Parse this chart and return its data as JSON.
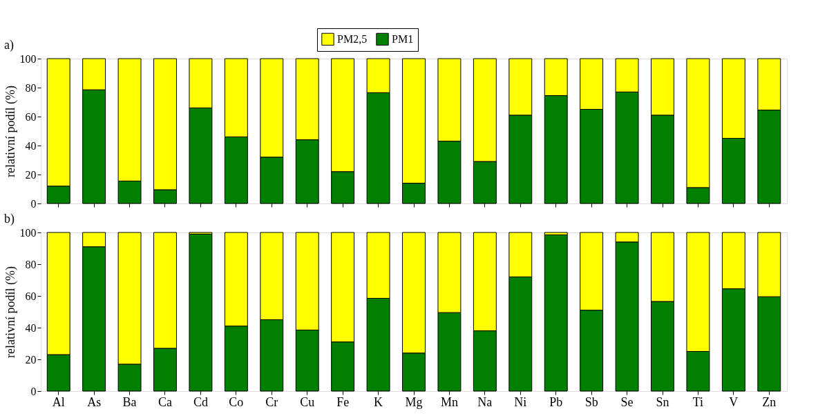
{
  "chart_data": [
    {
      "type": "bar",
      "stacked": true,
      "title": "a)",
      "ylabel": "relativní podíl (%)",
      "categories": [
        "Al",
        "As",
        "Ba",
        "Ca",
        "Cd",
        "Co",
        "Cr",
        "Cu",
        "Fe",
        "K",
        "Mg",
        "Mn",
        "Na",
        "Ni",
        "Pb",
        "Sb",
        "Se",
        "Sn",
        "Ti",
        "V",
        "Zn"
      ],
      "ylim": [
        0,
        100
      ],
      "yticks": [
        0,
        20,
        40,
        60,
        80,
        100
      ],
      "grid": false,
      "legend": "top",
      "tick_labels": "y",
      "series": [
        {
          "name": "PM1",
          "color": "#007f00",
          "values": [
            12,
            78.5,
            15.5,
            9.5,
            66,
            46,
            32,
            44,
            22,
            76.5,
            14,
            43,
            29,
            61,
            74.5,
            65,
            77,
            61,
            11,
            45,
            64.5
          ]
        },
        {
          "name": "PM2,5",
          "color": "#ffff00",
          "values": [
            88,
            21.5,
            84.5,
            90.5,
            34,
            54,
            68,
            56,
            78,
            23.5,
            86,
            57,
            71,
            39,
            25.5,
            35,
            23,
            39,
            89,
            55,
            35.5
          ]
        }
      ]
    },
    {
      "type": "bar",
      "stacked": true,
      "title": "b)",
      "ylabel": "relativní podíl (%)",
      "categories": [
        "Al",
        "As",
        "Ba",
        "Ca",
        "Cd",
        "Co",
        "Cr",
        "Cu",
        "Fe",
        "K",
        "Mg",
        "Mn",
        "Na",
        "Ni",
        "Pb",
        "Sb",
        "Se",
        "Sn",
        "Ti",
        "V",
        "Zn"
      ],
      "ylim": [
        0,
        100
      ],
      "yticks": [
        0,
        20,
        40,
        60,
        80,
        100
      ],
      "grid": false,
      "legend": false,
      "series": [
        {
          "name": "PM1",
          "color": "#007f00",
          "values": [
            23,
            91,
            17,
            27,
            99,
            41,
            45,
            38.5,
            31,
            58.5,
            24,
            49.5,
            38,
            72,
            98.5,
            51,
            94,
            56.5,
            25,
            64.5,
            59.5
          ]
        },
        {
          "name": "PM2,5",
          "color": "#ffff00",
          "values": [
            77,
            9,
            83,
            73,
            1,
            59,
            55,
            61.5,
            69,
            41.5,
            76,
            50.5,
            62,
            28,
            1.5,
            49,
            6,
            43.5,
            75,
            35.5,
            40.5
          ]
        }
      ]
    }
  ]
}
